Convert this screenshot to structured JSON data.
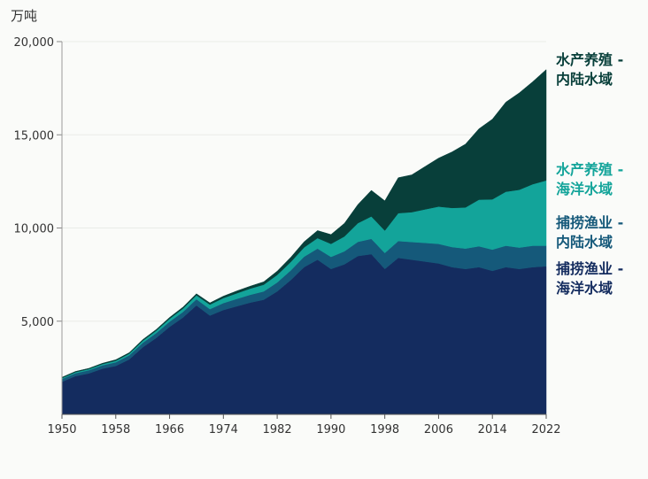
{
  "chart_data": {
    "type": "area",
    "stacked": true,
    "unit": "万吨",
    "xlabel": "",
    "ylabel": "万吨",
    "xlim": [
      1950,
      2022
    ],
    "ylim": [
      0,
      20000
    ],
    "y_ticks": [
      {
        "value": 5000,
        "label": "5,000"
      },
      {
        "value": 10000,
        "label": "10,000"
      },
      {
        "value": 15000,
        "label": "15,000"
      },
      {
        "value": 20000,
        "label": "20,000"
      }
    ],
    "x_ticks": [
      {
        "value": 1950,
        "label": "1950"
      },
      {
        "value": 1958,
        "label": "1958"
      },
      {
        "value": 1966,
        "label": "1966"
      },
      {
        "value": 1974,
        "label": "1974"
      },
      {
        "value": 1982,
        "label": "1982"
      },
      {
        "value": 1990,
        "label": "1990"
      },
      {
        "value": 1998,
        "label": "1998"
      },
      {
        "value": 2006,
        "label": "2006"
      },
      {
        "value": 2014,
        "label": "2014"
      },
      {
        "value": 2022,
        "label": "2022"
      }
    ],
    "x": [
      1950,
      1952,
      1954,
      1956,
      1958,
      1960,
      1962,
      1964,
      1966,
      1968,
      1970,
      1972,
      1974,
      1976,
      1978,
      1980,
      1982,
      1984,
      1986,
      1988,
      1990,
      1992,
      1994,
      1996,
      1998,
      2000,
      2002,
      2004,
      2006,
      2008,
      2010,
      2012,
      2014,
      2016,
      2018,
      2020,
      2022
    ],
    "series": [
      {
        "name": "捕捞渔业 - 海洋水域",
        "color": "#142c5f",
        "values": [
          1750,
          2050,
          2200,
          2450,
          2600,
          2950,
          3600,
          4100,
          4700,
          5200,
          5850,
          5300,
          5600,
          5800,
          6000,
          6150,
          6600,
          7200,
          7900,
          8300,
          7800,
          8050,
          8500,
          8600,
          7800,
          8400,
          8300,
          8200,
          8100,
          7900,
          7800,
          7900,
          7700,
          7900,
          7800,
          7900,
          7950
        ]
      },
      {
        "name": "捕捞渔业 - 内陆水域",
        "color": "#15597a",
        "values": [
          150,
          160,
          170,
          180,
          200,
          220,
          240,
          260,
          280,
          300,
          330,
          350,
          370,
          400,
          420,
          450,
          480,
          520,
          560,
          600,
          650,
          700,
          760,
          820,
          860,
          900,
          950,
          1000,
          1050,
          1080,
          1100,
          1120,
          1140,
          1150,
          1150,
          1150,
          1100
        ]
      },
      {
        "name": "水产养殖 - 海洋水域",
        "color": "#13a49a",
        "values": [
          50,
          55,
          60,
          70,
          80,
          90,
          110,
          130,
          150,
          180,
          210,
          240,
          270,
          300,
          330,
          360,
          400,
          450,
          500,
          560,
          700,
          800,
          1000,
          1200,
          1200,
          1500,
          1600,
          1800,
          2000,
          2100,
          2200,
          2500,
          2700,
          2900,
          3100,
          3300,
          3500
        ]
      },
      {
        "name": "水产养殖 - 内陆水域",
        "color": "#083f3a",
        "values": [
          40,
          40,
          40,
          40,
          50,
          50,
          60,
          60,
          70,
          80,
          80,
          90,
          100,
          120,
          130,
          150,
          200,
          250,
          300,
          400,
          500,
          700,
          1000,
          1400,
          1600,
          1900,
          2000,
          2300,
          2600,
          3000,
          3400,
          3800,
          4300,
          4800,
          5200,
          5500,
          5950
        ]
      }
    ],
    "legend": [
      {
        "line1": "水产养殖 -",
        "line2": "内陆水域",
        "color": "#083f3a"
      },
      {
        "line1": "水产养殖 -",
        "line2": "海洋水域",
        "color": "#13a49a"
      },
      {
        "line1": "捕捞渔业 -",
        "line2": "内陆水域",
        "color": "#15597a"
      },
      {
        "line1": "捕捞渔业 -",
        "line2": "海洋水域",
        "color": "#142c5f"
      }
    ],
    "grid": true,
    "legend_placement": "right"
  }
}
